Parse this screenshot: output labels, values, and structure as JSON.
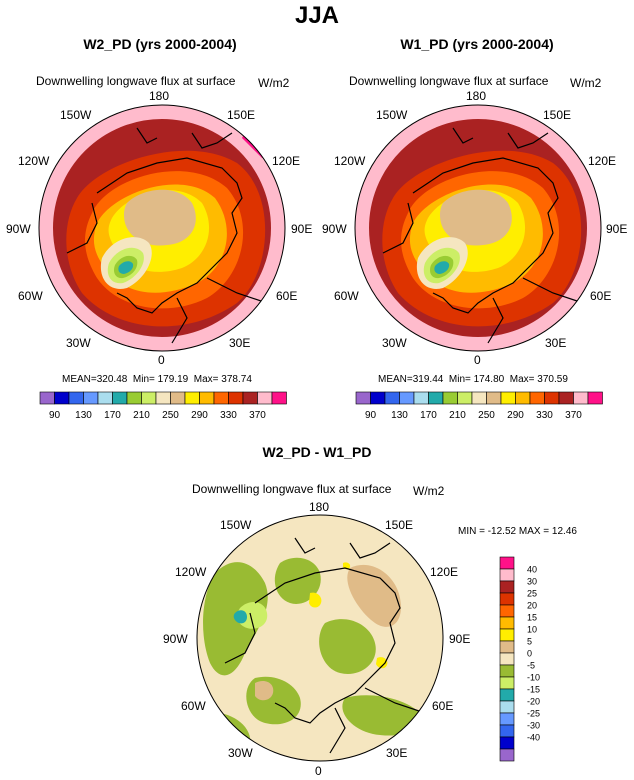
{
  "title": "JJA",
  "variable": "Downwelling longwave flux at surface",
  "units": "W/m2",
  "lon_labels": [
    "180",
    "150E",
    "120E",
    "90E",
    "60E",
    "30E",
    "0",
    "30W",
    "60W",
    "90W",
    "120W",
    "150W"
  ],
  "panels": [
    {
      "title": "W2_PD (yrs 2000-2004)",
      "mean": "320.48",
      "min": "179.19",
      "max": "378.74"
    },
    {
      "title": "W1_PD (yrs 2000-2004)",
      "mean": "319.44",
      "min": "174.80",
      "max": "370.59"
    }
  ],
  "abs_stats_prefix": {
    "mean": "MEAN=",
    "min": "Min=",
    "max": "Max="
  },
  "abs_colorbar": {
    "colors": [
      "#9966cc",
      "#0000cc",
      "#3366ee",
      "#6699ff",
      "#aaddee",
      "#22aaaa",
      "#99cc33",
      "#ccee66",
      "#f5e6c0",
      "#e0bb88",
      "#ffee00",
      "#ffbb00",
      "#ff6600",
      "#dd3300",
      "#aa2222",
      "#ffbbcc",
      "#ff1188"
    ],
    "labels": [
      "90",
      "130",
      "170",
      "210",
      "250",
      "290",
      "330",
      "370"
    ]
  },
  "diff": {
    "title": "W2_PD - W1_PD",
    "stats_text": "MIN = -12.52 MAX =  12.46",
    "colors": [
      "#9966cc",
      "#0000cc",
      "#3366ee",
      "#6699ff",
      "#aaddee",
      "#22aaaa",
      "#ccee66",
      "#99bb33",
      "#f5e6c0",
      "#e0bb88",
      "#ffee00",
      "#ffbb00",
      "#ff6600",
      "#dd3300",
      "#aa2222",
      "#ffbbcc",
      "#ff1188"
    ],
    "labels": [
      "-40",
      "-30",
      "-25",
      "-20",
      "-15",
      "-10",
      "-5",
      "0",
      "5",
      "10",
      "15",
      "20",
      "25",
      "30",
      "40"
    ]
  }
}
